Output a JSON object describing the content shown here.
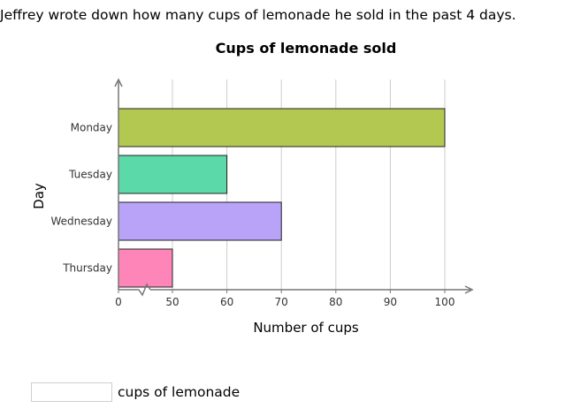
{
  "question": "Jeffrey wrote down how many cups of lemonade he sold in the past 4 days.",
  "answer": {
    "value": "",
    "placeholder": "",
    "suffix": "cups of lemonade"
  },
  "colors": {
    "bars": [
      "#b3c851",
      "#5bd9a8",
      "#b8a3f9",
      "#fd85b8"
    ],
    "grid": "#cccccc",
    "axis": "#777777"
  },
  "chart_data": {
    "type": "bar",
    "orientation": "horizontal",
    "title": "Cups of lemonade sold",
    "xlabel": "Number of cups",
    "ylabel": "Day",
    "categories": [
      "Monday",
      "Tuesday",
      "Wednesday",
      "Thursday"
    ],
    "values": [
      100,
      60,
      70,
      50
    ],
    "xlim": [
      40,
      100
    ],
    "xticks": [
      0,
      50,
      60,
      70,
      80,
      90,
      100
    ],
    "axis_break": true,
    "grid": true
  }
}
